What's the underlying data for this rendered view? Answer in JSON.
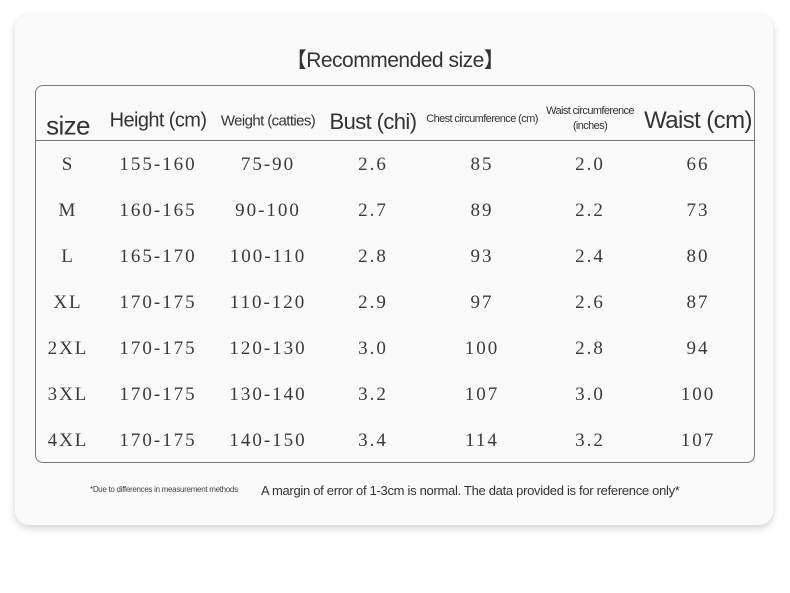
{
  "title": "【Recommended size】",
  "table": {
    "header": [
      "size",
      "Height (cm)",
      "Weight (catties)",
      "Bust (chi)",
      "Chest circumference (cm)",
      "Waist circumference (inches)",
      "Waist (cm)"
    ],
    "rows": [
      [
        "S",
        "155-160",
        "75-90",
        "2.6",
        "85",
        "2.0",
        "66"
      ],
      [
        "M",
        "160-165",
        "90-100",
        "2.7",
        "89",
        "2.2",
        "73"
      ],
      [
        "L",
        "165-170",
        "100-110",
        "2.8",
        "93",
        "2.4",
        "80"
      ],
      [
        "XL",
        "170-175",
        "110-120",
        "2.9",
        "97",
        "2.6",
        "87"
      ],
      [
        "2XL",
        "170-175",
        "120-130",
        "3.0",
        "100",
        "2.8",
        "94"
      ],
      [
        "3XL",
        "170-175",
        "130-140",
        "3.2",
        "107",
        "3.0",
        "100"
      ],
      [
        "4XL",
        "170-175",
        "140-150",
        "3.4",
        "114",
        "3.2",
        "107"
      ]
    ]
  },
  "footnote": {
    "small": "*Due to differences in measurement methods",
    "main": "A margin of error of 1-3cm is normal. The data provided is for reference only*"
  }
}
